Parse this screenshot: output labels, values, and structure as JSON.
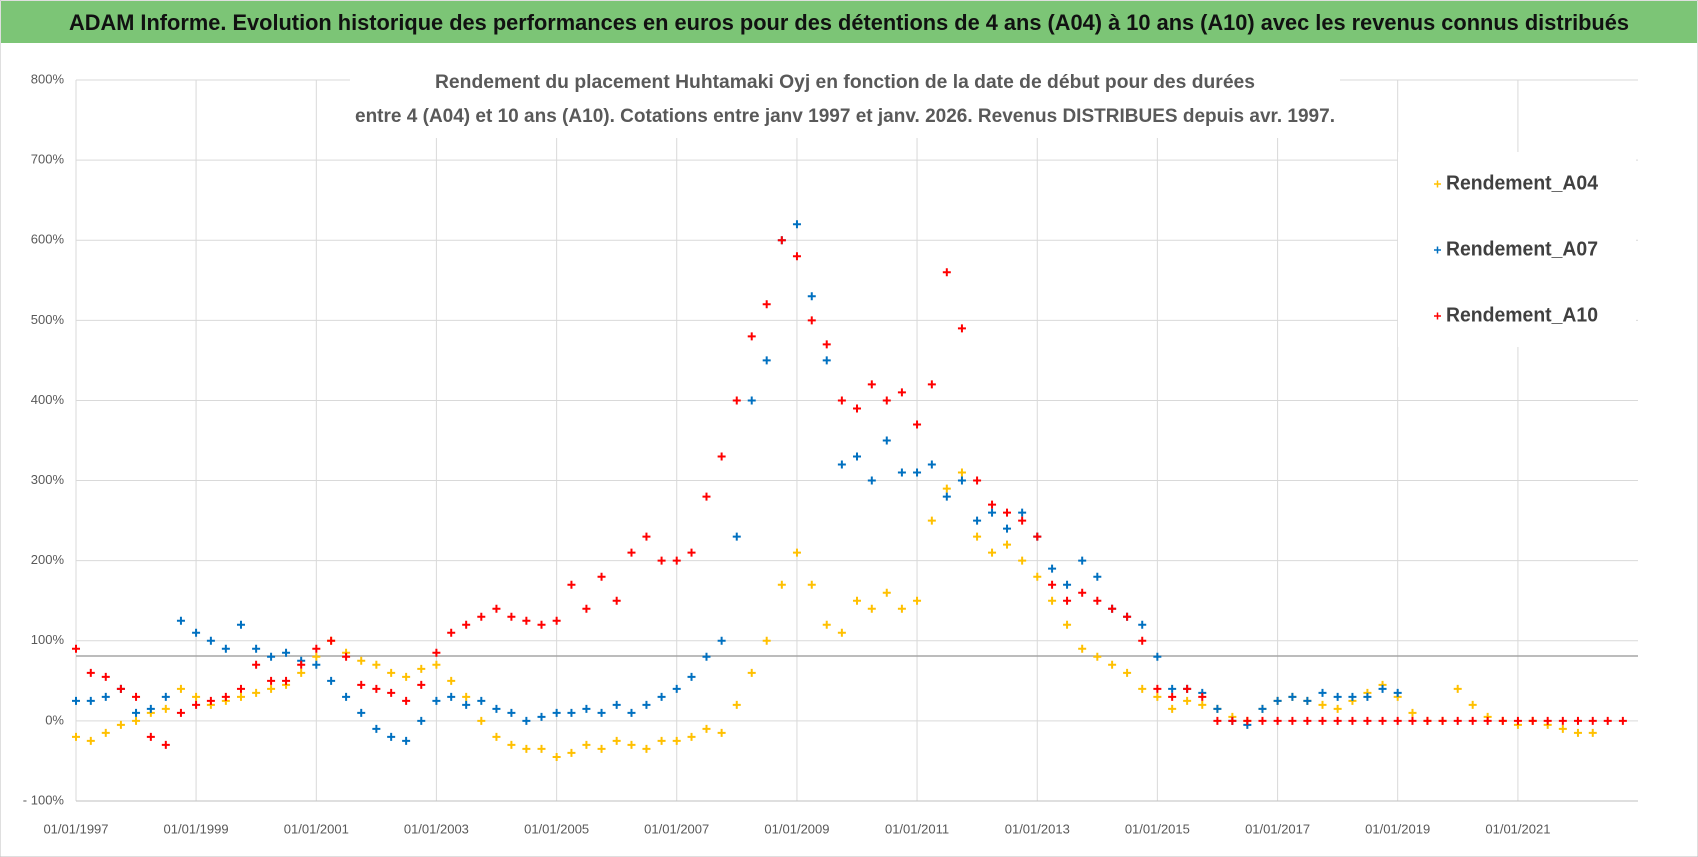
{
  "chart_data": {
    "type": "scatter",
    "title": "ADAM Informe. Evolution historique des performances en euros pour des détentions de 4 ans (A04) à 10 ans (A10) avec les revenus connus distribués",
    "subtitle": [
      "Rendement du placement Huhtamaki Oyj en fonction de la date de début pour des durées",
      "entre 4 (A04) et 10 ans (A10).  Cotations entre janv 1997 et janv. 2026. Revenus  DISTRIBUES depuis avr. 1997."
    ],
    "x": [
      "01/01/1997",
      "01/04/1997",
      "01/07/1997",
      "01/10/1997",
      "01/01/1998",
      "01/04/1998",
      "01/07/1998",
      "01/10/1998",
      "01/01/1999",
      "01/04/1999",
      "01/07/1999",
      "01/10/1999",
      "01/01/2000",
      "01/04/2000",
      "01/07/2000",
      "01/10/2000",
      "01/01/2001",
      "01/04/2001",
      "01/07/2001",
      "01/10/2001",
      "01/01/2002",
      "01/04/2002",
      "01/07/2002",
      "01/10/2002",
      "01/01/2003",
      "01/04/2003",
      "01/07/2003",
      "01/10/2003",
      "01/01/2004",
      "01/04/2004",
      "01/07/2004",
      "01/10/2004",
      "01/01/2005",
      "01/04/2005",
      "01/07/2005",
      "01/10/2005",
      "01/01/2006",
      "01/04/2006",
      "01/07/2006",
      "01/10/2006",
      "01/01/2007",
      "01/04/2007",
      "01/07/2007",
      "01/10/2007",
      "01/01/2008",
      "01/04/2008",
      "01/07/2008",
      "01/10/2008",
      "01/01/2009",
      "01/04/2009",
      "01/07/2009",
      "01/10/2009",
      "01/01/2010",
      "01/04/2010",
      "01/07/2010",
      "01/10/2010",
      "01/01/2011",
      "01/04/2011",
      "01/07/2011",
      "01/10/2011",
      "01/01/2012",
      "01/04/2012",
      "01/07/2012",
      "01/10/2012",
      "01/01/2013",
      "01/04/2013",
      "01/07/2013",
      "01/10/2013",
      "01/01/2014",
      "01/04/2014",
      "01/07/2014",
      "01/10/2014",
      "01/01/2015",
      "01/04/2015",
      "01/07/2015",
      "01/10/2015",
      "01/01/2016",
      "01/04/2016",
      "01/07/2016",
      "01/10/2016",
      "01/01/2017",
      "01/04/2017",
      "01/07/2017",
      "01/10/2017",
      "01/01/2018",
      "01/04/2018",
      "01/07/2018",
      "01/10/2018",
      "01/01/2019",
      "01/04/2019",
      "01/07/2019",
      "01/10/2019",
      "01/01/2020",
      "01/04/2020",
      "01/07/2020",
      "01/10/2020",
      "01/01/2021",
      "01/04/2021",
      "01/07/2021",
      "01/10/2021",
      "01/01/2022",
      "01/04/2022",
      "01/07/2022",
      "01/10/2022"
    ],
    "series": [
      {
        "name": "Rendement_A04",
        "color": "#ffc000",
        "values": [
          -20,
          -25,
          -15,
          -5,
          0,
          10,
          15,
          40,
          30,
          20,
          25,
          30,
          35,
          40,
          45,
          60,
          80,
          100,
          85,
          75,
          70,
          60,
          55,
          65,
          70,
          50,
          30,
          0,
          -20,
          -30,
          -35,
          -35,
          -45,
          -40,
          -30,
          -35,
          -25,
          -30,
          -35,
          -25,
          -25,
          -20,
          -10,
          -15,
          20,
          60,
          100,
          170,
          210,
          170,
          120,
          110,
          150,
          140,
          160,
          140,
          150,
          250,
          290,
          310,
          230,
          210,
          220,
          200,
          180,
          150,
          120,
          90,
          80,
          70,
          60,
          40,
          30,
          15,
          25,
          20,
          15,
          5,
          0,
          15,
          25,
          30,
          25,
          20,
          15,
          25,
          35,
          45,
          30,
          10,
          0,
          0,
          40,
          20,
          5,
          0,
          -5,
          0,
          -5,
          -10,
          -15,
          -15,
          null,
          null
        ]
      },
      {
        "name": "Rendement_A07",
        "color": "#0070c0",
        "values": [
          25,
          25,
          30,
          40,
          10,
          15,
          30,
          125,
          110,
          100,
          90,
          120,
          90,
          80,
          85,
          75,
          70,
          50,
          30,
          10,
          -10,
          -20,
          -25,
          0,
          25,
          30,
          20,
          25,
          15,
          10,
          0,
          5,
          10,
          10,
          15,
          10,
          20,
          10,
          20,
          30,
          40,
          55,
          80,
          100,
          230,
          400,
          450,
          600,
          620,
          530,
          450,
          320,
          330,
          300,
          350,
          310,
          310,
          320,
          280,
          300,
          250,
          260,
          240,
          260,
          230,
          190,
          170,
          200,
          180,
          140,
          130,
          120,
          80,
          40,
          40,
          35,
          15,
          0,
          -5,
          15,
          25,
          30,
          25,
          35,
          30,
          30,
          30,
          40,
          35,
          null,
          null,
          null,
          null,
          null,
          null,
          null,
          null,
          null,
          null,
          null,
          null,
          null,
          null,
          null
        ]
      },
      {
        "name": "Rendement_A10",
        "color": "#ff0000",
        "values": [
          90,
          60,
          55,
          40,
          30,
          -20,
          -30,
          10,
          20,
          25,
          30,
          40,
          70,
          50,
          50,
          70,
          90,
          100,
          80,
          45,
          40,
          35,
          25,
          45,
          85,
          110,
          120,
          130,
          140,
          130,
          125,
          120,
          125,
          170,
          140,
          180,
          150,
          210,
          230,
          200,
          200,
          210,
          280,
          330,
          400,
          480,
          520,
          600,
          580,
          500,
          470,
          400,
          390,
          420,
          400,
          410,
          370,
          420,
          560,
          490,
          300,
          270,
          260,
          250,
          230,
          170,
          150,
          160,
          150,
          140,
          130,
          100,
          40,
          30,
          40,
          30,
          0,
          0,
          0,
          0,
          0,
          0,
          0,
          0,
          0,
          0,
          0,
          0,
          0,
          0,
          0,
          0,
          0,
          0,
          0,
          0,
          0,
          0,
          0,
          0,
          0,
          0,
          0,
          0
        ]
      }
    ],
    "xlim": [
      "01/01/1997",
      "01/01/2023"
    ],
    "xticks": [
      "01/01/1997",
      "01/01/1999",
      "01/01/2001",
      "01/01/2003",
      "01/01/2005",
      "01/01/2007",
      "01/01/2009",
      "01/01/2011",
      "01/01/2013",
      "01/01/2015",
      "01/01/2017",
      "01/01/2019",
      "01/01/2021"
    ],
    "ylim": [
      -100,
      800
    ],
    "yticks": [
      {
        "value": -100,
        "label": "- 100%"
      },
      {
        "value": 0,
        "label": "0%"
      },
      {
        "value": 100,
        "label": "100%"
      },
      {
        "value": 200,
        "label": "200%"
      },
      {
        "value": 300,
        "label": "300%"
      },
      {
        "value": 400,
        "label": "400%"
      },
      {
        "value": 500,
        "label": "500%"
      },
      {
        "value": 600,
        "label": "600%"
      },
      {
        "value": 700,
        "label": "700%"
      },
      {
        "value": 800,
        "label": "800%"
      }
    ],
    "reference_line": 81,
    "grid": true,
    "legend": "right"
  }
}
